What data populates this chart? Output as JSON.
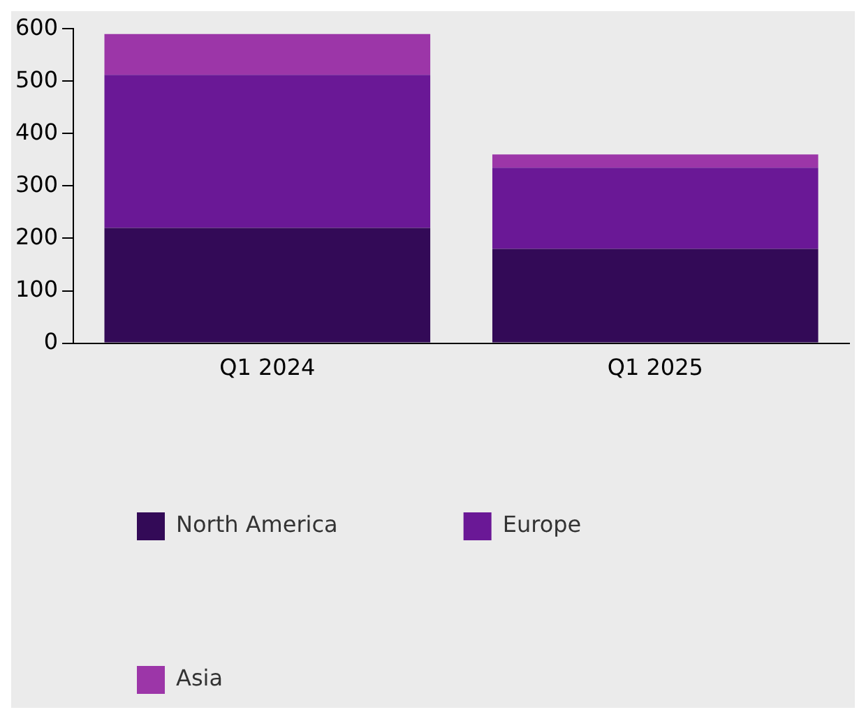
{
  "chart_data": {
    "type": "bar",
    "stacked": true,
    "categories": [
      "Q1 2024",
      "Q1 2025"
    ],
    "series": [
      {
        "name": "North America",
        "color": "#330a57",
        "values": [
          220,
          180
        ]
      },
      {
        "name": "Europe",
        "color": "#6a1896",
        "values": [
          292,
          155
        ]
      },
      {
        "name": "Asia",
        "color": "#9c36a8",
        "values": [
          78,
          25
        ]
      }
    ],
    "ylim": [
      0,
      600
    ],
    "yticks": [
      0,
      100,
      200,
      300,
      400,
      500,
      600
    ],
    "grid": false,
    "legend": "bottom"
  }
}
